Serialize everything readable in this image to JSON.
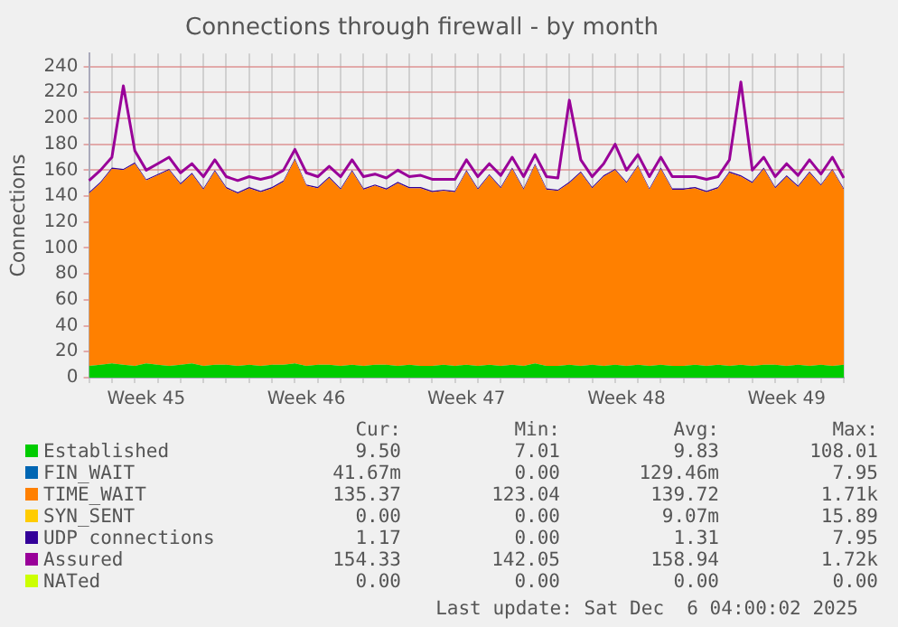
{
  "chart_data": {
    "type": "area",
    "title": "Connections through firewall - by month",
    "ylabel": "Connections",
    "stacked": true,
    "grid": true,
    "legend": "bottom",
    "ylim": [
      0,
      250
    ],
    "yticks": [
      0,
      20,
      40,
      60,
      80,
      100,
      120,
      140,
      160,
      180,
      200,
      220,
      240
    ],
    "categories": [
      null,
      null,
      null,
      null,
      null,
      "Week 45",
      null,
      null,
      null,
      null,
      null,
      null,
      null,
      null,
      null,
      null,
      null,
      null,
      null,
      "Week 46",
      null,
      null,
      null,
      null,
      null,
      null,
      null,
      null,
      null,
      null,
      null,
      null,
      null,
      "Week 47",
      null,
      null,
      null,
      null,
      null,
      null,
      null,
      null,
      null,
      null,
      null,
      null,
      null,
      "Week 48",
      null,
      null,
      null,
      null,
      null,
      null,
      null,
      null,
      null,
      null,
      null,
      null,
      null,
      "Week 49",
      null,
      null,
      null,
      null,
      null
    ],
    "series": [
      {
        "name": "Established",
        "color": "#00cc00",
        "values": [
          9,
          10,
          11,
          10,
          9,
          11,
          10,
          9,
          10,
          11,
          9,
          10,
          10,
          9,
          10,
          9,
          10,
          10,
          11,
          9,
          10,
          10,
          9,
          10,
          9,
          10,
          10,
          9,
          10,
          9,
          9,
          10,
          9,
          10,
          9,
          10,
          9,
          10,
          9,
          11,
          9,
          9,
          10,
          9,
          10,
          9,
          10,
          9,
          10,
          9,
          10,
          9,
          9,
          10,
          9,
          10,
          9,
          10,
          9,
          10,
          10,
          9,
          10,
          9,
          10,
          9,
          10
        ]
      },
      {
        "name": "FIN_WAIT",
        "color": "#0066b3",
        "values": [
          null,
          null,
          null,
          null,
          null,
          null,
          null,
          null,
          null,
          null,
          null,
          null,
          null,
          null,
          null,
          null,
          null,
          null,
          null,
          null,
          null,
          null,
          null,
          null,
          null,
          null,
          null,
          null,
          null,
          null,
          null,
          null,
          null,
          null,
          null,
          null,
          null,
          null,
          null,
          null,
          null,
          null,
          null,
          null,
          null,
          null,
          null,
          null,
          null,
          null,
          null,
          null,
          null,
          null,
          null,
          null,
          null,
          null,
          null,
          null,
          null,
          null,
          null,
          null,
          null,
          null,
          null
        ]
      },
      {
        "name": "TIME_WAIT",
        "color": "#ff8000",
        "values": [
          133,
          140,
          150,
          150,
          156,
          141,
          146,
          151,
          139,
          146,
          136,
          149,
          136,
          133,
          136,
          134,
          136,
          141,
          157,
          139,
          136,
          144,
          136,
          149,
          136,
          138,
          135,
          141,
          136,
          137,
          134,
          134,
          134,
          149,
          136,
          146,
          137,
          151,
          136,
          153,
          136,
          135,
          140,
          149,
          136,
          146,
          150,
          141,
          153,
          136,
          151,
          136,
          136,
          136,
          134,
          136,
          149,
          145,
          141,
          151,
          136,
          146,
          137,
          149,
          138,
          151,
          135
        ]
      },
      {
        "name": "SYN_SENT",
        "color": "#ffcc00",
        "values": [
          null,
          null,
          null,
          null,
          null,
          null,
          null,
          null,
          null,
          null,
          null,
          null,
          null,
          null,
          null,
          null,
          null,
          null,
          null,
          null,
          null,
          null,
          null,
          null,
          null,
          null,
          null,
          null,
          null,
          null,
          null,
          null,
          null,
          null,
          null,
          null,
          null,
          null,
          null,
          null,
          null,
          null,
          null,
          null,
          null,
          null,
          null,
          null,
          null,
          null,
          null,
          null,
          null,
          null,
          null,
          null,
          null,
          null,
          null,
          null,
          null,
          null,
          null,
          null,
          null,
          null,
          null
        ]
      },
      {
        "name": "UDP connections",
        "color": "#330099",
        "values": [
          1,
          1,
          1,
          1,
          1,
          1,
          1,
          1,
          1,
          1,
          1,
          1,
          1,
          1,
          1,
          1,
          1,
          1,
          1,
          1,
          1,
          1,
          1,
          1,
          1,
          1,
          1,
          1,
          1,
          1,
          1,
          1,
          1,
          1,
          1,
          1,
          1,
          1,
          1,
          1,
          1,
          1,
          1,
          1,
          1,
          1,
          1,
          1,
          1,
          1,
          1,
          1,
          1,
          1,
          1,
          1,
          1,
          1,
          1,
          1,
          1,
          1,
          1,
          1,
          1,
          1,
          1
        ]
      },
      {
        "name": "Assured",
        "type": "line",
        "color": "#990099",
        "values": [
          152,
          160,
          170,
          225,
          175,
          160,
          165,
          170,
          158,
          165,
          155,
          168,
          155,
          152,
          155,
          153,
          155,
          160,
          176,
          158,
          155,
          163,
          155,
          168,
          155,
          157,
          154,
          160,
          155,
          156,
          153,
          153,
          153,
          168,
          155,
          165,
          156,
          170,
          155,
          172,
          155,
          154,
          214,
          168,
          155,
          165,
          180,
          160,
          172,
          155,
          170,
          155,
          155,
          155,
          153,
          155,
          168,
          228,
          160,
          170,
          155,
          165,
          156,
          168,
          157,
          170,
          154
        ]
      },
      {
        "name": "NATed",
        "type": "line",
        "color": "#ccff00",
        "values": [
          null,
          null,
          null,
          null,
          null,
          null,
          null,
          null,
          null,
          null,
          null,
          null,
          null,
          null,
          null,
          null,
          null,
          null,
          null,
          null,
          null,
          null,
          null,
          null,
          null,
          null,
          null,
          null,
          null,
          null,
          null,
          null,
          null,
          null,
          null,
          null,
          null,
          null,
          null,
          null,
          null,
          null,
          null,
          null,
          null,
          null,
          null,
          null,
          null,
          null,
          null,
          null,
          null,
          null,
          null,
          null,
          null,
          null,
          null,
          null,
          null,
          null,
          null,
          null,
          null,
          null,
          null
        ]
      }
    ],
    "annotations": [
      "Cur:",
      "Min:",
      "Avg:",
      "Max:",
      "9.50",
      "7.01",
      "9.83",
      "108.01",
      "41.67m",
      "0.00",
      "129.46m",
      "7.95",
      "135.37",
      "123.04",
      "139.72",
      "1.71k",
      "0.00",
      "0.00",
      "9.07m",
      "15.89",
      "1.17",
      "0.00",
      "1.31",
      "7.95",
      "154.33",
      "142.05",
      "158.94",
      "1.72k",
      "0.00",
      "0.00",
      "0.00",
      "0.00",
      "Last update: Sat Dec  6 04:00:02 2025"
    ]
  }
}
